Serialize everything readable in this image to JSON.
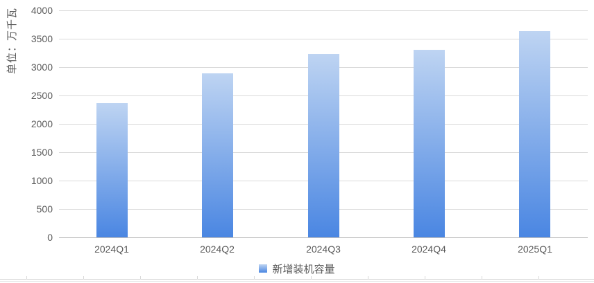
{
  "chart_data": {
    "type": "bar",
    "title": "",
    "xlabel": "",
    "ylabel": "单位：万千瓦",
    "categories": [
      "2024Q1",
      "2024Q2",
      "2024Q3",
      "2024Q4",
      "2025Q1"
    ],
    "series": [
      {
        "name": "新增装机容量",
        "values": [
          2370,
          2890,
          3230,
          3300,
          3640
        ]
      }
    ],
    "ylim": [
      0,
      4000
    ],
    "yticks": [
      0,
      500,
      1000,
      1500,
      2000,
      2500,
      3000,
      3500,
      4000
    ],
    "grid": true,
    "legend_position": "bottom",
    "colors": {
      "bar_gradient_top": "#bed4f2",
      "bar_gradient_bottom": "#4a86e2",
      "gridline": "#d9d9d9",
      "axis_line": "#bfbfbf",
      "text": "#595959",
      "background": "#ffffff"
    }
  }
}
